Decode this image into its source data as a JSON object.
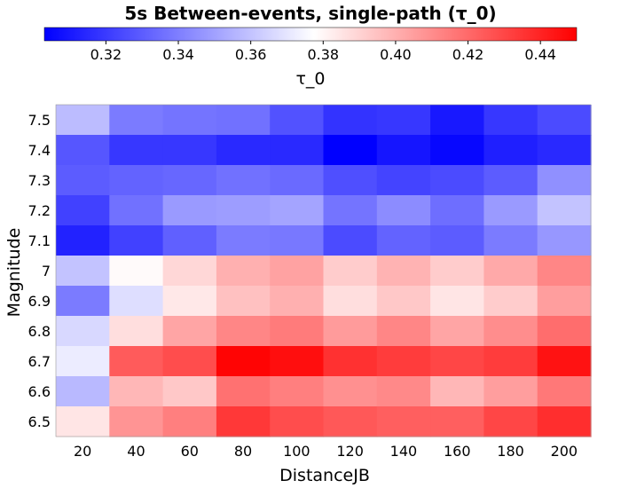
{
  "chart_data": {
    "type": "heatmap",
    "title": "5s Between-events, single-path (τ_0)",
    "xlabel": "DistanceJB",
    "ylabel": "Magnitude",
    "colorbar": {
      "label": "τ_0",
      "min": 0.303,
      "max": 0.45,
      "center": 0.3775,
      "ticks": [
        "0.32",
        "0.34",
        "0.36",
        "0.38",
        "0.40",
        "0.42",
        "0.44"
      ],
      "low_color": "#0000ff",
      "mid_color": "#ffffff",
      "high_color": "#ff0000",
      "placement": "top"
    },
    "x": [
      "20",
      "40",
      "60",
      "80",
      "100",
      "120",
      "140",
      "160",
      "180",
      "200"
    ],
    "y": [
      "7.5",
      "7.4",
      "7.3",
      "7.2",
      "7.1",
      "7",
      "6.9",
      "6.8",
      "6.7",
      "6.6",
      "6.5"
    ],
    "values": [
      [
        0.358,
        0.339,
        0.337,
        0.336,
        0.327,
        0.318,
        0.319,
        0.31,
        0.319,
        0.325
      ],
      [
        0.328,
        0.319,
        0.319,
        0.315,
        0.315,
        0.303,
        0.309,
        0.305,
        0.312,
        0.315
      ],
      [
        0.33,
        0.332,
        0.333,
        0.336,
        0.334,
        0.326,
        0.323,
        0.325,
        0.33,
        0.345
      ],
      [
        0.322,
        0.336,
        0.348,
        0.349,
        0.351,
        0.337,
        0.344,
        0.335,
        0.348,
        0.36
      ],
      [
        0.313,
        0.322,
        0.331,
        0.339,
        0.338,
        0.325,
        0.332,
        0.33,
        0.339,
        0.347
      ],
      [
        0.36,
        0.379,
        0.389,
        0.4,
        0.404,
        0.392,
        0.399,
        0.392,
        0.402,
        0.412
      ],
      [
        0.339,
        0.368,
        0.384,
        0.395,
        0.4,
        0.387,
        0.393,
        0.385,
        0.392,
        0.405
      ],
      [
        0.366,
        0.387,
        0.403,
        0.412,
        0.415,
        0.406,
        0.412,
        0.403,
        0.41,
        0.419
      ],
      [
        0.372,
        0.424,
        0.428,
        0.449,
        0.446,
        0.436,
        0.433,
        0.43,
        0.433,
        0.445
      ],
      [
        0.357,
        0.398,
        0.393,
        0.418,
        0.414,
        0.409,
        0.411,
        0.398,
        0.405,
        0.416
      ],
      [
        0.385,
        0.408,
        0.414,
        0.434,
        0.428,
        0.425,
        0.423,
        0.423,
        0.43,
        0.437
      ]
    ]
  }
}
